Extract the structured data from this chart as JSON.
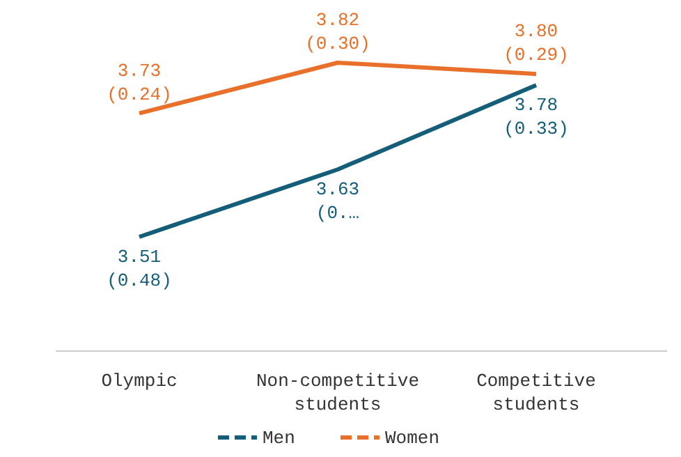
{
  "chart_data": {
    "type": "line",
    "categories": [
      "Olympic",
      "Non-competitive students",
      "Competitive students"
    ],
    "series": [
      {
        "name": "Men",
        "color": "#155e7a",
        "values": [
          3.51,
          3.63,
          3.78
        ],
        "value_labels": [
          "3.51\n(0.48)",
          "3.63\n(0.…",
          "3.78\n(0.33)"
        ]
      },
      {
        "name": "Women",
        "color": "#e8702a",
        "values": [
          3.73,
          3.82,
          3.8
        ],
        "value_labels": [
          "3.73\n(0.24)",
          "3.82\n(0.30)",
          "3.80\n(0.29)"
        ]
      }
    ],
    "legend": "bottom",
    "marker": "none",
    "line_style": "solid",
    "grid": false
  }
}
